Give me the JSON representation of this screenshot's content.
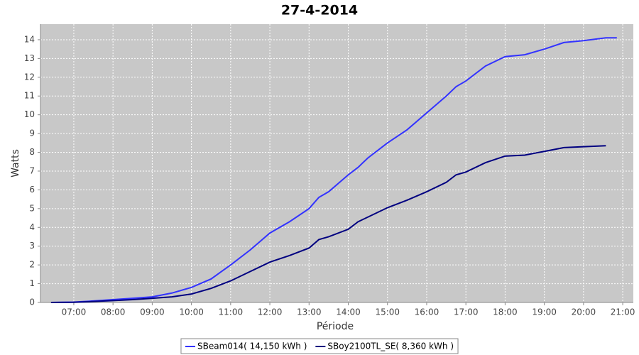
{
  "chart_data": {
    "type": "line",
    "title": "27-4-2014",
    "x_label": "Période",
    "y_label": "Watts",
    "x": [
      6.42,
      7,
      7.5,
      8,
      8.5,
      9,
      9.5,
      10,
      10.5,
      11,
      11.5,
      12,
      12.5,
      13,
      13.25,
      13.5,
      14,
      14.25,
      14.5,
      15,
      15.5,
      16,
      16.5,
      16.75,
      17,
      17.5,
      18,
      18.5,
      19,
      19.5,
      20,
      20.57,
      20.85
    ],
    "series": [
      {
        "name": "SBeam014( 14,150 kWh )",
        "color": "#3333ff",
        "values": [
          0,
          0.02,
          0.08,
          0.15,
          0.22,
          0.3,
          0.5,
          0.8,
          1.25,
          2.0,
          2.8,
          3.7,
          4.3,
          5.0,
          5.6,
          5.9,
          6.8,
          7.2,
          7.7,
          8.5,
          9.2,
          10.1,
          11.0,
          11.5,
          11.8,
          12.6,
          13.1,
          13.2,
          13.5,
          13.85,
          13.95,
          14.1,
          14.1
        ]
      },
      {
        "name": "SBoy2100TL_SE( 8,360 kWh )",
        "color": "#000080",
        "values": [
          0,
          0.01,
          0.05,
          0.1,
          0.15,
          0.22,
          0.3,
          0.45,
          0.75,
          1.15,
          1.65,
          2.15,
          2.5,
          2.9,
          3.35,
          3.5,
          3.9,
          4.3,
          4.55,
          5.05,
          5.45,
          5.9,
          6.4,
          6.8,
          6.95,
          7.45,
          7.8,
          7.85,
          8.05,
          8.25,
          8.3,
          8.35,
          null
        ]
      }
    ],
    "xlim": [
      6.15,
      21.27
    ],
    "ylim": [
      0,
      14.83
    ],
    "xticks": [
      {
        "value": 7,
        "label": "07:00"
      },
      {
        "value": 8,
        "label": "08:00"
      },
      {
        "value": 9,
        "label": "09:00"
      },
      {
        "value": 10,
        "label": "10:00"
      },
      {
        "value": 11,
        "label": "11:00"
      },
      {
        "value": 12,
        "label": "12:00"
      },
      {
        "value": 13,
        "label": "13:00"
      },
      {
        "value": 14,
        "label": "14:00"
      },
      {
        "value": 15,
        "label": "15:00"
      },
      {
        "value": 16,
        "label": "16:00"
      },
      {
        "value": 17,
        "label": "17:00"
      },
      {
        "value": 18,
        "label": "18:00"
      },
      {
        "value": 19,
        "label": "19:00"
      },
      {
        "value": 20,
        "label": "20:00"
      },
      {
        "value": 21,
        "label": "21:00"
      }
    ],
    "yticks": [
      0,
      1,
      2,
      3,
      4,
      5,
      6,
      7,
      8,
      9,
      10,
      11,
      12,
      13,
      14
    ],
    "grid": true,
    "legend": "bottom"
  }
}
